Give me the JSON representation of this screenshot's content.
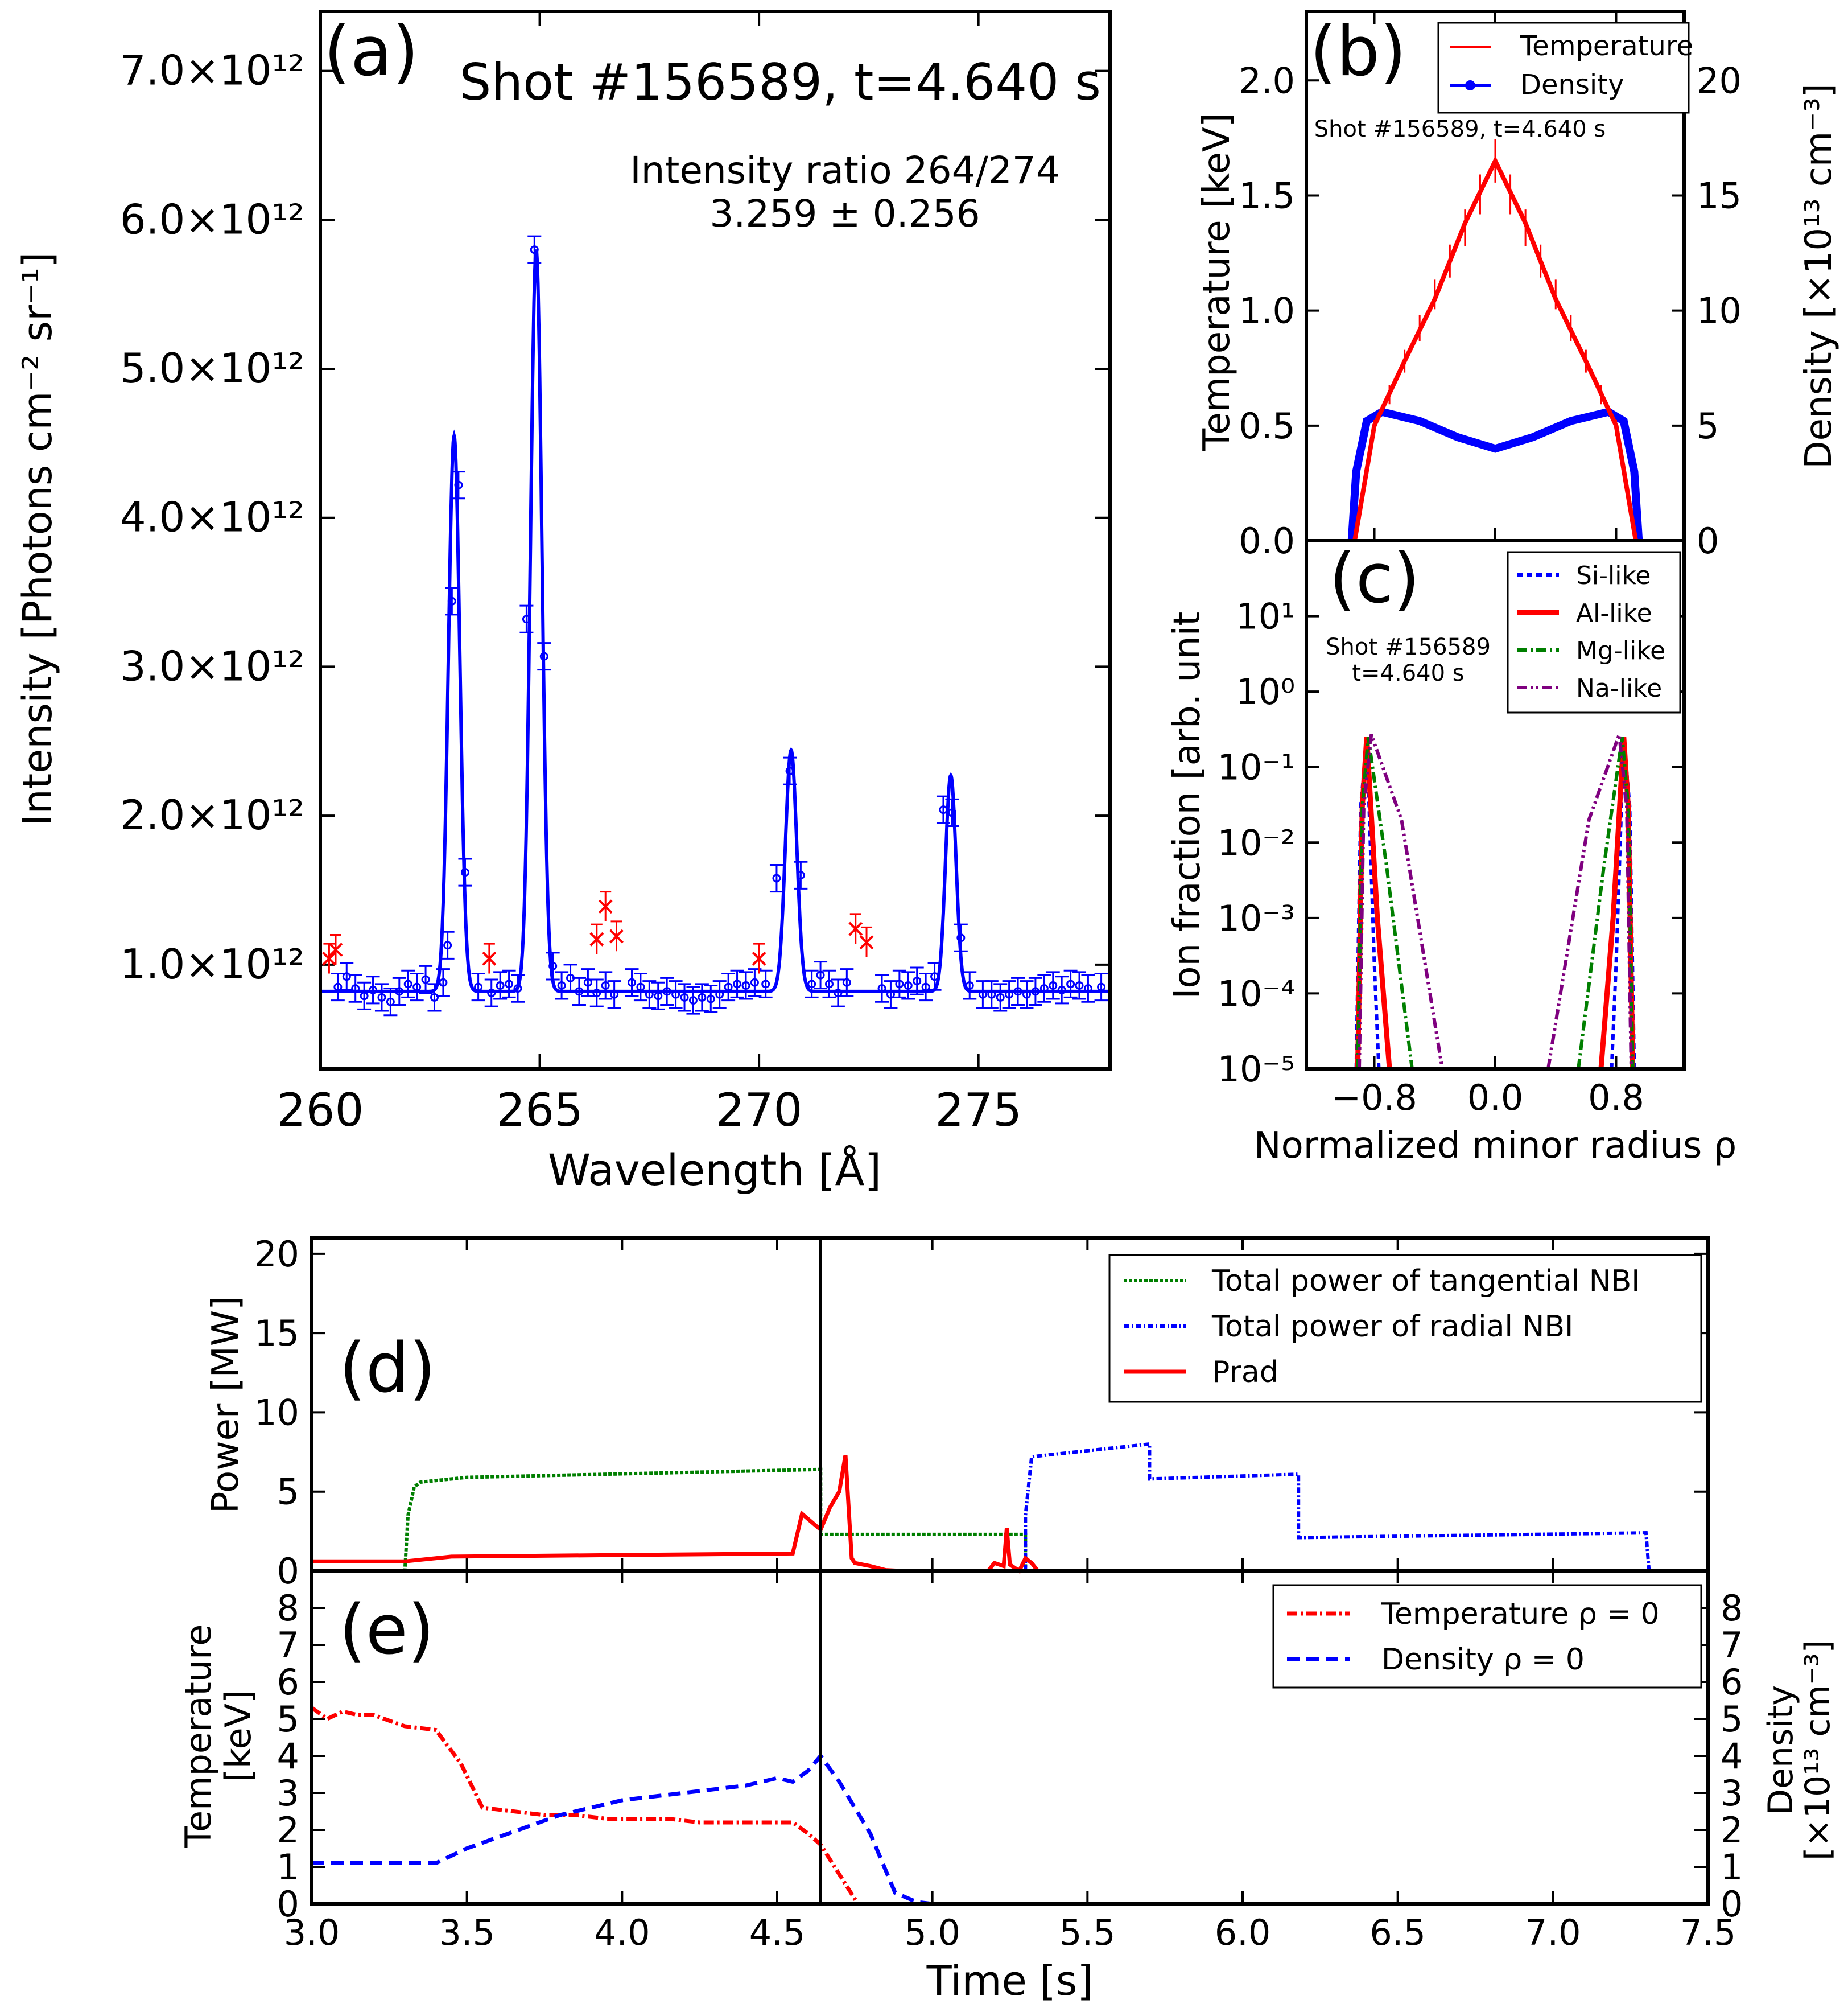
{
  "chart_data": [
    {
      "id": "a",
      "type": "line",
      "panel_label": "(a)",
      "title": "Shot #156589, t=4.640 s",
      "annotation": [
        "Intensity ratio 264/274",
        "3.259  ±      0.256"
      ],
      "xlabel": "Wavelength [Å]",
      "ylabel": "Intensity [Photons cm⁻² sr⁻¹]",
      "xlim": [
        260,
        278
      ],
      "ylim": [
        0.3,
        7.4
      ],
      "y_multiplier": "×10¹²",
      "xticks": [
        260,
        265,
        270,
        275
      ],
      "yticks": [
        {
          "v": 1.0,
          "label": "1.0×10¹²"
        },
        {
          "v": 2.0,
          "label": "2.0×10¹²"
        },
        {
          "v": 3.0,
          "label": "3.0×10¹²"
        },
        {
          "v": 4.0,
          "label": "4.0×10¹²"
        },
        {
          "v": 5.0,
          "label": "5.0×10¹²"
        },
        {
          "v": 6.0,
          "label": "6.0×10¹²"
        },
        {
          "v": 7.0,
          "label": "7.0×10¹²"
        }
      ],
      "fit": {
        "baseline": 0.82,
        "peaks": [
          {
            "center": 263.05,
            "amp": 3.73,
            "sigma": 0.13
          },
          {
            "center": 264.92,
            "amp": 4.98,
            "sigma": 0.13
          },
          {
            "center": 270.73,
            "amp": 1.62,
            "sigma": 0.13
          },
          {
            "center": 274.37,
            "amp": 1.45,
            "sigma": 0.12
          }
        ]
      },
      "data_points": [
        [
          260.4,
          0.85
        ],
        [
          260.6,
          0.92
        ],
        [
          260.8,
          0.84
        ],
        [
          261.0,
          0.79
        ],
        [
          261.2,
          0.83
        ],
        [
          261.4,
          0.78
        ],
        [
          261.6,
          0.75
        ],
        [
          261.8,
          0.82
        ],
        [
          262.0,
          0.87
        ],
        [
          262.2,
          0.85
        ],
        [
          262.4,
          0.9
        ],
        [
          262.6,
          0.78
        ],
        [
          262.8,
          0.88
        ],
        [
          262.9,
          1.13
        ],
        [
          263.0,
          3.44
        ],
        [
          263.15,
          4.22
        ],
        [
          263.3,
          1.62
        ],
        [
          263.6,
          0.85
        ],
        [
          263.9,
          0.81
        ],
        [
          264.1,
          0.86
        ],
        [
          264.3,
          0.87
        ],
        [
          264.5,
          0.84
        ],
        [
          264.7,
          3.32
        ],
        [
          264.88,
          5.8
        ],
        [
          265.1,
          3.07
        ],
        [
          265.3,
          0.99
        ],
        [
          265.5,
          0.86
        ],
        [
          265.7,
          0.91
        ],
        [
          265.9,
          0.82
        ],
        [
          266.1,
          0.88
        ],
        [
          266.3,
          0.81
        ],
        [
          266.5,
          0.86
        ],
        [
          266.7,
          0.8
        ],
        [
          267.1,
          0.88
        ],
        [
          267.3,
          0.85
        ],
        [
          267.5,
          0.8
        ],
        [
          267.7,
          0.79
        ],
        [
          267.9,
          0.82
        ],
        [
          268.1,
          0.8
        ],
        [
          268.3,
          0.78
        ],
        [
          268.5,
          0.76
        ],
        [
          268.7,
          0.78
        ],
        [
          268.9,
          0.77
        ],
        [
          269.1,
          0.8
        ],
        [
          269.3,
          0.85
        ],
        [
          269.5,
          0.87
        ],
        [
          269.7,
          0.86
        ],
        [
          269.9,
          0.88
        ],
        [
          270.15,
          0.87
        ],
        [
          270.4,
          1.58
        ],
        [
          270.7,
          2.3
        ],
        [
          270.95,
          1.6
        ],
        [
          271.2,
          0.87
        ],
        [
          271.4,
          0.93
        ],
        [
          271.6,
          0.87
        ],
        [
          271.8,
          0.81
        ],
        [
          272.0,
          0.88
        ],
        [
          272.8,
          0.84
        ],
        [
          273.0,
          0.8
        ],
        [
          273.2,
          0.87
        ],
        [
          273.4,
          0.86
        ],
        [
          273.6,
          0.89
        ],
        [
          273.8,
          0.85
        ],
        [
          274.0,
          0.92
        ],
        [
          274.2,
          2.04
        ],
        [
          274.4,
          2.02
        ],
        [
          274.6,
          1.18
        ],
        [
          274.8,
          0.86
        ],
        [
          275.1,
          0.8
        ],
        [
          275.3,
          0.8
        ],
        [
          275.5,
          0.78
        ],
        [
          275.7,
          0.8
        ],
        [
          275.9,
          0.82
        ],
        [
          276.1,
          0.8
        ],
        [
          276.3,
          0.82
        ],
        [
          276.5,
          0.84
        ],
        [
          276.7,
          0.86
        ],
        [
          276.9,
          0.83
        ],
        [
          277.1,
          0.87
        ],
        [
          277.3,
          0.86
        ],
        [
          277.5,
          0.84
        ],
        [
          277.8,
          0.85
        ]
      ],
      "excluded_points": [
        [
          260.2,
          1.04
        ],
        [
          260.35,
          1.1
        ],
        [
          263.85,
          1.04
        ],
        [
          266.3,
          1.17
        ],
        [
          266.5,
          1.39
        ],
        [
          266.75,
          1.19
        ],
        [
          270.0,
          1.04
        ],
        [
          272.2,
          1.24
        ],
        [
          272.45,
          1.15
        ]
      ]
    },
    {
      "id": "b",
      "type": "line",
      "panel_label": "(b)",
      "annotation": "Shot #156589, t=4.640 s",
      "ylabel_left": "Temperature [keV]",
      "ylabel_right": "Density [×10¹³ cm⁻³]",
      "ylim_left": [
        0,
        2.3
      ],
      "ylim_right": [
        0,
        23
      ],
      "yticks_left": [
        "0.0",
        "0.5",
        "1.0",
        "1.5",
        "2.0"
      ],
      "yticks_right": [
        "0",
        "5",
        "10",
        "15",
        "20"
      ],
      "xlim": [
        -1.25,
        1.25
      ],
      "legend": [
        "Temperature",
        "Density"
      ],
      "series": [
        {
          "name": "Temperature",
          "axis": "left",
          "x": [
            -0.93,
            -0.8,
            -0.6,
            -0.4,
            -0.2,
            0.0,
            0.2,
            0.4,
            0.6,
            0.8,
            0.93
          ],
          "y": [
            0.0,
            0.5,
            0.78,
            1.05,
            1.38,
            1.65,
            1.38,
            1.05,
            0.78,
            0.5,
            0.0
          ]
        },
        {
          "name": "Density",
          "axis": "right",
          "x": [
            -0.95,
            -0.92,
            -0.85,
            -0.75,
            -0.5,
            -0.25,
            0.0,
            0.25,
            0.5,
            0.75,
            0.85,
            0.92,
            0.95
          ],
          "y": [
            0.0,
            3.0,
            5.2,
            5.6,
            5.2,
            4.5,
            4.0,
            4.5,
            5.2,
            5.6,
            5.2,
            3.0,
            0.0
          ]
        }
      ]
    },
    {
      "id": "c",
      "type": "line",
      "panel_label": "(c)",
      "annotation": [
        "Shot #156589",
        "t=4.640 s"
      ],
      "ylabel": "Ion fraction [arb. unit",
      "xlabel": "Normalized minor radius ρ",
      "xlim": [
        -1.25,
        1.25
      ],
      "xticks": [
        {
          "v": -0.8,
          "label": "−0.8"
        },
        {
          "v": 0.0,
          "label": "0.0"
        },
        {
          "v": 0.8,
          "label": "0.8"
        }
      ],
      "yscale": "log",
      "ylim_exp": [
        -5,
        2
      ],
      "yticks": [
        "10⁻⁵",
        "10⁻⁴",
        "10⁻³",
        "10⁻²",
        "10⁻¹",
        "10⁰",
        "10¹"
      ],
      "legend": [
        "Si-like",
        "Al-like",
        "Mg-like",
        "Na-like"
      ],
      "series": [
        {
          "name": "Si-like",
          "x": [
            -0.92,
            -0.89,
            -0.85,
            -0.8,
            -0.77,
            0.77,
            0.8,
            0.85,
            0.89,
            0.92
          ],
          "y": [
            1e-05,
            0.03,
            0.25,
            0.00025,
            1e-05,
            1e-05,
            0.00025,
            0.25,
            0.03,
            1e-05
          ]
        },
        {
          "name": "Al-like",
          "x": [
            -0.91,
            -0.88,
            -0.85,
            -0.78,
            -0.7,
            0.7,
            0.78,
            0.85,
            0.88,
            0.91
          ],
          "y": [
            1e-05,
            0.03,
            0.25,
            0.001,
            1e-05,
            1e-05,
            0.001,
            0.25,
            0.03,
            1e-05
          ]
        },
        {
          "name": "Mg-like",
          "x": [
            -0.91,
            -0.88,
            -0.84,
            -0.72,
            -0.55,
            0.55,
            0.72,
            0.84,
            0.88,
            0.91
          ],
          "y": [
            1e-05,
            0.03,
            0.25,
            0.005,
            1e-05,
            1e-05,
            0.005,
            0.25,
            0.03,
            1e-05
          ]
        },
        {
          "name": "Na-like",
          "x": [
            -0.9,
            -0.87,
            -0.82,
            -0.62,
            -0.35,
            0.35,
            0.62,
            0.82,
            0.87,
            0.9
          ],
          "y": [
            1e-05,
            0.03,
            0.27,
            0.02,
            1e-05,
            1e-05,
            0.02,
            0.27,
            0.03,
            1e-05
          ]
        }
      ]
    },
    {
      "id": "d",
      "type": "line",
      "panel_label": "(d)",
      "ylabel": "Power [MW]",
      "ylim": [
        0,
        21
      ],
      "yticks": [
        "0",
        "5",
        "10",
        "15",
        "20"
      ],
      "xlim": [
        3.0,
        7.5
      ],
      "marker_time": 4.64,
      "legend": [
        "Total power of tangential NBI",
        "Total power of radial NBI",
        "Prad"
      ],
      "series": [
        {
          "name": "Total power of tangential NBI",
          "x": [
            3.0,
            3.3,
            3.31,
            3.33,
            3.35,
            3.5,
            4.64,
            4.64,
            5.3,
            5.3
          ],
          "y": [
            0,
            0,
            3.5,
            5.3,
            5.6,
            5.9,
            6.4,
            2.3,
            2.3,
            0
          ]
        },
        {
          "name": "Total power of radial NBI",
          "x": [
            5.3,
            5.3,
            5.32,
            5.7,
            5.7,
            6.18,
            6.18,
            7.3,
            7.31
          ],
          "y": [
            0,
            3.5,
            7.2,
            8.0,
            5.8,
            6.1,
            2.1,
            2.4,
            0
          ]
        },
        {
          "name": "Prad",
          "x": [
            3.0,
            3.3,
            3.45,
            4.0,
            4.55,
            4.58,
            4.64,
            4.67,
            4.7,
            4.72,
            4.74,
            4.75,
            4.8,
            4.85,
            4.9,
            5.18,
            5.2,
            5.23,
            5.24,
            5.25,
            5.28,
            5.3,
            5.32,
            5.34
          ],
          "y": [
            0.6,
            0.6,
            0.9,
            1.0,
            1.1,
            3.6,
            2.6,
            4.0,
            5.0,
            7.3,
            0.8,
            0.5,
            0.3,
            0.05,
            0,
            0,
            0.5,
            0.3,
            2.7,
            0.4,
            0,
            0.8,
            0.5,
            0
          ]
        }
      ]
    },
    {
      "id": "e",
      "type": "line",
      "panel_label": "(e)",
      "ylabel_left": [
        "Temperature",
        "[keV]"
      ],
      "ylabel_right": [
        "Density",
        "[×10¹³ cm⁻³]"
      ],
      "ylim_left": [
        0,
        9
      ],
      "ylim_right": [
        0,
        9
      ],
      "yticks_left": [
        "0",
        "1",
        "2",
        "3",
        "4",
        "5",
        "6",
        "7",
        "8"
      ],
      "yticks_right": [
        "0",
        "1",
        "2",
        "3",
        "4",
        "5",
        "6",
        "7",
        "8"
      ],
      "xlabel": "Time [s]",
      "xlim": [
        3.0,
        7.5
      ],
      "xticks": [
        "3.0",
        "3.5",
        "4.0",
        "4.5",
        "5.0",
        "5.5",
        "6.0",
        "6.5",
        "7.0",
        "7.5"
      ],
      "marker_time": 4.64,
      "legend": [
        "Temperature ρ = 0",
        "Density  ρ = 0"
      ],
      "series": [
        {
          "name": "Temperature ρ = 0",
          "axis": "left",
          "x": [
            3.0,
            3.05,
            3.1,
            3.15,
            3.2,
            3.3,
            3.4,
            3.48,
            3.55,
            3.65,
            3.75,
            3.85,
            3.95,
            4.05,
            4.15,
            4.25,
            4.35,
            4.45,
            4.55,
            4.6,
            4.64,
            4.7,
            4.76
          ],
          "y": [
            5.3,
            5.0,
            5.2,
            5.1,
            5.1,
            4.8,
            4.7,
            3.8,
            2.6,
            2.5,
            2.4,
            2.4,
            2.3,
            2.3,
            2.3,
            2.2,
            2.2,
            2.2,
            2.2,
            1.9,
            1.6,
            0.8,
            0
          ]
        },
        {
          "name": "Density  ρ = 0",
          "axis": "right",
          "x": [
            3.0,
            3.2,
            3.4,
            3.5,
            3.6,
            3.7,
            3.8,
            3.9,
            4.0,
            4.2,
            4.4,
            4.5,
            4.55,
            4.6,
            4.64,
            4.7,
            4.8,
            4.88,
            4.95,
            5.0
          ],
          "y": [
            1.1,
            1.1,
            1.1,
            1.5,
            1.8,
            2.1,
            2.4,
            2.6,
            2.8,
            3.0,
            3.2,
            3.4,
            3.3,
            3.6,
            4.0,
            3.3,
            1.9,
            0.3,
            0.05,
            0
          ]
        }
      ]
    }
  ]
}
